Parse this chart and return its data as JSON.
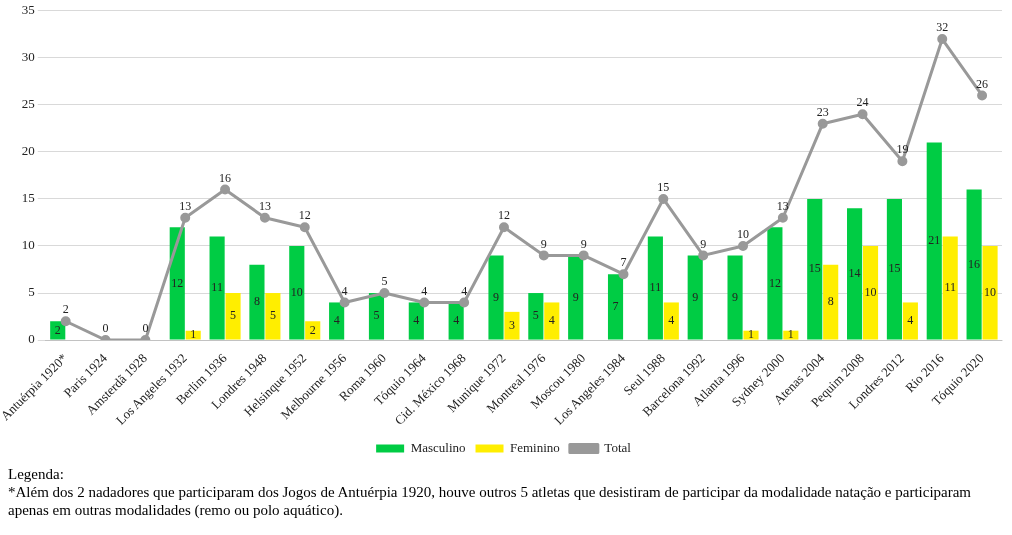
{
  "chart_data": {
    "type": "bar",
    "categories": [
      "Antuérpia 1920*",
      "Paris 1924",
      "Amsterdã 1928",
      "Los Angeles 1932",
      "Berlim 1936",
      "Londres 1948",
      "Helsinque 1952",
      "Melbourne 1956",
      "Roma 1960",
      "Tóquio 1964",
      "Cid. México 1968",
      "Munique 1972",
      "Montreal 1976",
      "Moscou 1980",
      "Los Angeles 1984",
      "Seul 1988",
      "Barcelona 1992",
      "Atlanta 1996",
      "Sydney 2000",
      "Atenas 2004",
      "Pequim 2008",
      "Londres 2012",
      "Rio 2016",
      "Tóquio 2020"
    ],
    "series": [
      {
        "name": "Masculino",
        "color": "#00cc44",
        "values": [
          2,
          0,
          0,
          12,
          11,
          8,
          10,
          4,
          5,
          4,
          4,
          9,
          5,
          9,
          7,
          11,
          9,
          9,
          12,
          15,
          14,
          15,
          21,
          16
        ],
        "value_labels": [
          "2",
          null,
          null,
          "12",
          "11",
          "8",
          "10",
          "4",
          "5",
          "4",
          "4",
          "9",
          "5",
          "9",
          "7",
          "11",
          "9",
          "9",
          "12",
          "15",
          "14",
          "15",
          "21",
          "16"
        ]
      },
      {
        "name": "Feminino",
        "color": "#ffee00",
        "values": [
          0,
          0,
          0,
          1,
          5,
          5,
          2,
          0,
          0,
          0,
          0,
          3,
          4,
          0,
          0,
          4,
          0,
          1,
          1,
          8,
          10,
          4,
          11,
          10
        ],
        "value_labels": [
          null,
          null,
          null,
          "1",
          "5",
          "5",
          "2",
          null,
          null,
          null,
          null,
          "3",
          "4",
          null,
          null,
          "4",
          null,
          "1",
          "1",
          "8",
          "10",
          "4",
          "11",
          "10"
        ]
      },
      {
        "name": "Total",
        "type": "line",
        "color": "#999999",
        "marker": "circle",
        "values": [
          2,
          0,
          0,
          13,
          16,
          13,
          12,
          4,
          5,
          4,
          4,
          12,
          9,
          9,
          7,
          15,
          9,
          10,
          13,
          23,
          24,
          19,
          32,
          26
        ],
        "value_labels": [
          "2",
          "0",
          "0",
          "13",
          "16",
          "13",
          "12",
          "4",
          "5",
          "4",
          "4",
          "12",
          "9",
          "9",
          "7",
          "15",
          "9",
          "10",
          "13",
          "23",
          "24",
          "19",
          "32",
          "26"
        ]
      }
    ],
    "ylim": [
      0,
      35
    ],
    "yticks": [
      0,
      5,
      10,
      15,
      20,
      25,
      30,
      35
    ],
    "grid": "y",
    "legend": "bottom",
    "annotations": [
      "Legenda:",
      "*Além dos 2 nadadores que participaram dos Jogos de Antuérpia 1920, houve outros 5 atletas que desistiram de participar da modalidade natação e participaram apenas em outras modalidades (remo ou polo aquático)."
    ]
  }
}
